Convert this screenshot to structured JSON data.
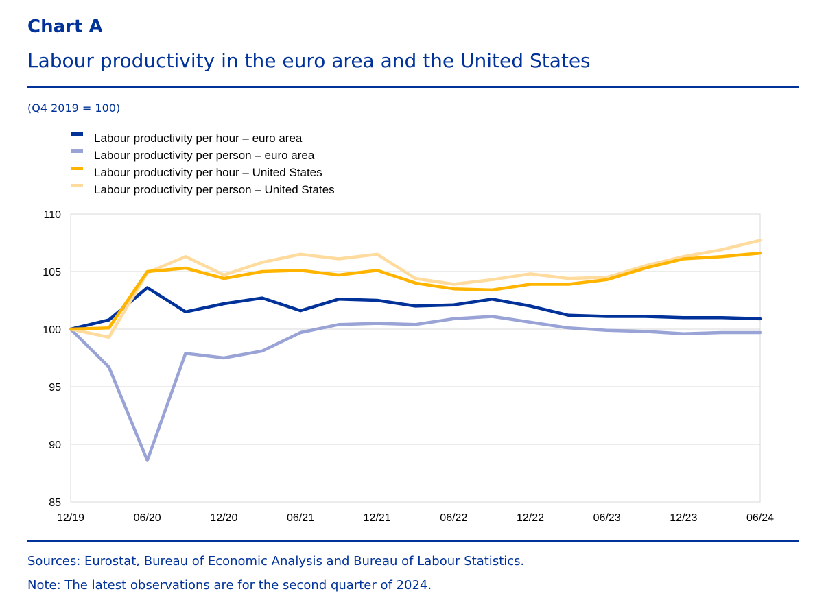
{
  "header": {
    "label": "Chart A",
    "title": "Labour productivity in the euro area and the United States",
    "subtitle": "(Q4 2019 = 100)"
  },
  "footer": {
    "sources": "Sources: Eurostat, Bureau of Economic Analysis and Bureau of Labour Statistics.",
    "note": "Note: The latest observations are for the second quarter of 2024."
  },
  "chart_data": {
    "type": "line",
    "x": [
      "12/19",
      "03/20",
      "06/20",
      "09/20",
      "12/20",
      "03/21",
      "06/21",
      "09/21",
      "12/21",
      "03/22",
      "06/22",
      "09/22",
      "12/22",
      "03/23",
      "06/23",
      "09/23",
      "12/23",
      "03/24",
      "06/24"
    ],
    "x_tick_labels": [
      "12/19",
      "06/20",
      "12/20",
      "06/21",
      "12/21",
      "06/22",
      "12/22",
      "06/23",
      "12/23",
      "06/24"
    ],
    "ylim": [
      85,
      110
    ],
    "y_ticks": [
      85,
      90,
      95,
      100,
      105,
      110
    ],
    "grid": true,
    "legend_position": "top-left",
    "series": [
      {
        "name": "Labour productivity per hour – euro area",
        "color": "#003299",
        "values": [
          100.0,
          100.8,
          103.6,
          101.5,
          102.2,
          102.7,
          101.6,
          102.6,
          102.5,
          102.0,
          102.1,
          102.6,
          102.0,
          101.2,
          101.1,
          101.1,
          101.0,
          101.0,
          100.9
        ]
      },
      {
        "name": "Labour productivity per person – euro area",
        "color": "#9aa3d6",
        "values": [
          100.0,
          96.7,
          88.6,
          97.9,
          97.5,
          98.1,
          99.7,
          100.4,
          100.5,
          100.4,
          100.9,
          101.1,
          100.6,
          100.1,
          99.9,
          99.8,
          99.6,
          99.7,
          99.7
        ]
      },
      {
        "name": "Labour productivity per hour – United States",
        "color": "#ffb400",
        "values": [
          100.0,
          100.1,
          105.0,
          105.3,
          104.4,
          105.0,
          105.1,
          104.7,
          105.1,
          104.0,
          103.5,
          103.4,
          103.9,
          103.9,
          104.3,
          105.3,
          106.1,
          106.3,
          106.6
        ]
      },
      {
        "name": "Labour productivity per person – United States",
        "color": "#ffdb9e",
        "values": [
          100.0,
          99.3,
          104.9,
          106.3,
          104.7,
          105.8,
          106.5,
          106.1,
          106.5,
          104.4,
          103.9,
          104.3,
          104.8,
          104.4,
          104.5,
          105.5,
          106.3,
          106.9,
          107.7
        ]
      }
    ]
  }
}
